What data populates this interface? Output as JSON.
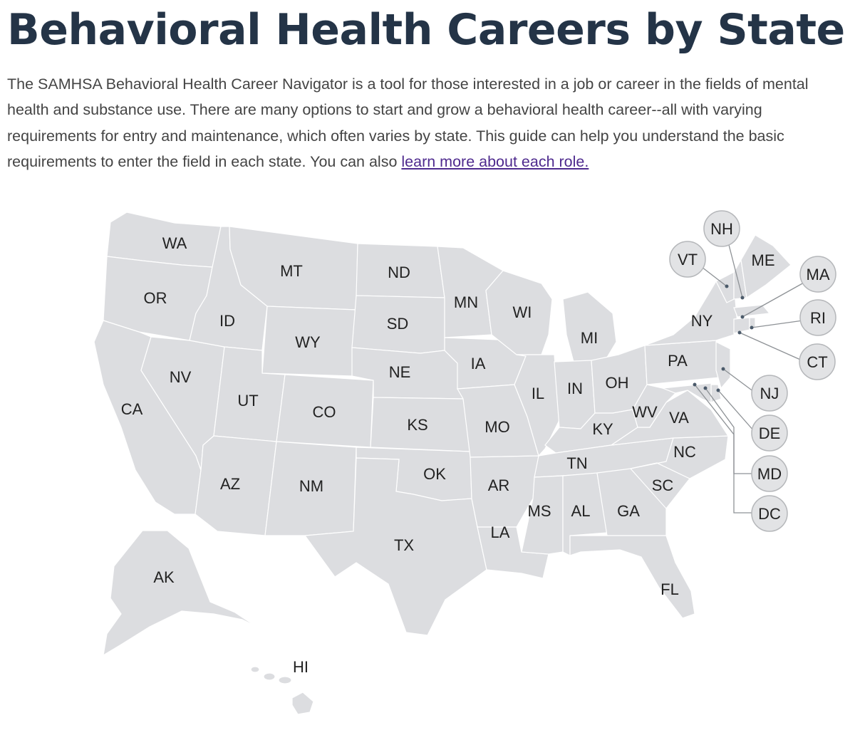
{
  "page": {
    "title": "Behavioral Health Careers by State",
    "intro_text": "The SAMHSA Behavioral Health Career Navigator is a tool for those interested in a job or career in the fields of mental health and substance use. There are many options to start and grow a behavioral health career--all with varying requirements for entry and maintenance, which often varies by state. This guide can help you understand the basic requirements to enter the field in each state. You can also ",
    "intro_link": "learn more about each role."
  },
  "map": {
    "state_fill": "#dcdde0",
    "state_border": "#ffffff",
    "bubble_fill": "#e2e3e5",
    "states": {
      "WA": "WA",
      "OR": "OR",
      "CA": "CA",
      "NV": "NV",
      "ID": "ID",
      "MT": "MT",
      "WY": "WY",
      "UT": "UT",
      "AZ": "AZ",
      "CO": "CO",
      "NM": "NM",
      "ND": "ND",
      "SD": "SD",
      "NE": "NE",
      "KS": "KS",
      "OK": "OK",
      "TX": "TX",
      "MN": "MN",
      "IA": "IA",
      "MO": "MO",
      "AR": "AR",
      "LA": "LA",
      "WI": "WI",
      "IL": "IL",
      "MI": "MI",
      "IN": "IN",
      "OH": "OH",
      "KY": "KY",
      "TN": "TN",
      "MS": "MS",
      "AL": "AL",
      "GA": "GA",
      "FL": "FL",
      "SC": "SC",
      "NC": "NC",
      "VA": "VA",
      "WV": "WV",
      "PA": "PA",
      "NY": "NY",
      "ME": "ME",
      "AK": "AK",
      "HI": "HI"
    },
    "bubbles": {
      "NH": "NH",
      "VT": "VT",
      "MA": "MA",
      "RI": "RI",
      "CT": "CT",
      "NJ": "NJ",
      "DE": "DE",
      "MD": "MD",
      "DC": "DC"
    }
  }
}
